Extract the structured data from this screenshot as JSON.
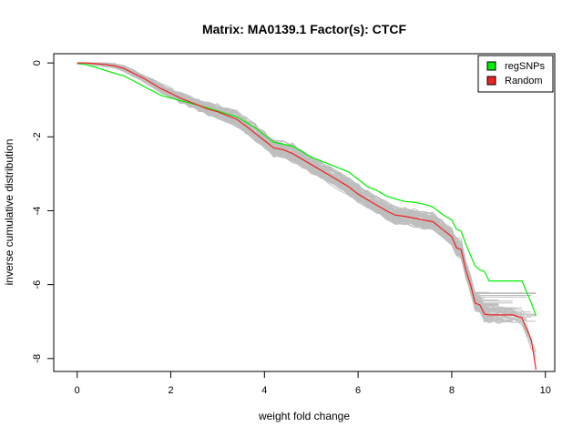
{
  "chart_data": {
    "type": "line",
    "title": "Matrix: MA0139.1 Factor(s): CTCF",
    "xlabel": "weight fold change",
    "ylabel": "inverse cumulative distribution",
    "xlim": [
      -0.5,
      10.2
    ],
    "ylim": [
      -8.35,
      0.25
    ],
    "xticks": [
      0,
      2,
      4,
      6,
      8,
      10
    ],
    "yticks": [
      0,
      -2,
      -4,
      -6,
      -8
    ],
    "grid": false,
    "legend_position": "top-right",
    "colors": {
      "regSNPs": "#00ee00",
      "Random": "#ee2222",
      "background": "#bebebe"
    },
    "series": [
      {
        "name": "regSNPs",
        "x": [
          0,
          0.2,
          0.4,
          0.6,
          0.8,
          1.0,
          1.2,
          1.4,
          1.6,
          1.8,
          2.0,
          2.2,
          2.4,
          2.6,
          2.8,
          3.0,
          3.2,
          3.4,
          3.6,
          3.8,
          4.0,
          4.2,
          4.4,
          4.6,
          4.8,
          5.0,
          5.2,
          5.4,
          5.6,
          5.8,
          6.0,
          6.2,
          6.4,
          6.6,
          6.8,
          7.0,
          7.2,
          7.4,
          7.6,
          7.8,
          8.0,
          8.1,
          8.2,
          8.3,
          8.4,
          8.5,
          8.6,
          8.7,
          8.8,
          9.0,
          9.3,
          9.5,
          9.6,
          9.7,
          9.8
        ],
        "values": [
          0,
          -0.05,
          -0.12,
          -0.2,
          -0.28,
          -0.35,
          -0.48,
          -0.62,
          -0.75,
          -0.88,
          -0.95,
          -1.02,
          -1.08,
          -1.15,
          -1.22,
          -1.3,
          -1.38,
          -1.45,
          -1.6,
          -1.75,
          -1.95,
          -2.15,
          -2.2,
          -2.25,
          -2.4,
          -2.55,
          -2.65,
          -2.75,
          -2.85,
          -2.95,
          -3.15,
          -3.35,
          -3.45,
          -3.6,
          -3.68,
          -3.75,
          -3.77,
          -3.82,
          -3.9,
          -4.1,
          -4.25,
          -4.5,
          -4.55,
          -4.9,
          -5.2,
          -5.5,
          -5.6,
          -5.65,
          -5.9,
          -5.9,
          -5.9,
          -5.9,
          -6.2,
          -6.5,
          -6.85
        ]
      },
      {
        "name": "Random",
        "x": [
          0,
          0.2,
          0.4,
          0.6,
          0.8,
          1.0,
          1.2,
          1.4,
          1.6,
          1.8,
          2.0,
          2.2,
          2.4,
          2.6,
          2.8,
          3.0,
          3.2,
          3.4,
          3.6,
          3.8,
          4.0,
          4.2,
          4.4,
          4.6,
          4.8,
          5.0,
          5.2,
          5.4,
          5.6,
          5.8,
          6.0,
          6.2,
          6.4,
          6.6,
          6.8,
          7.0,
          7.2,
          7.4,
          7.6,
          7.8,
          8.0,
          8.1,
          8.2,
          8.3,
          8.4,
          8.5,
          8.6,
          8.7,
          8.8,
          9.0,
          9.3,
          9.5,
          9.6,
          9.7,
          9.8
        ],
        "values": [
          0,
          0,
          -0.02,
          -0.04,
          -0.08,
          -0.15,
          -0.28,
          -0.4,
          -0.55,
          -0.7,
          -0.82,
          -0.95,
          -1.05,
          -1.15,
          -1.25,
          -1.32,
          -1.42,
          -1.52,
          -1.7,
          -1.9,
          -2.1,
          -2.3,
          -2.35,
          -2.45,
          -2.6,
          -2.75,
          -2.9,
          -3.05,
          -3.2,
          -3.35,
          -3.55,
          -3.7,
          -3.85,
          -4.0,
          -4.12,
          -4.15,
          -4.2,
          -4.25,
          -4.3,
          -4.5,
          -4.7,
          -5.0,
          -5.05,
          -5.6,
          -6.0,
          -6.5,
          -6.55,
          -6.8,
          -6.82,
          -6.82,
          -6.82,
          -6.9,
          -7.2,
          -7.5,
          -8.3
        ]
      }
    ]
  }
}
